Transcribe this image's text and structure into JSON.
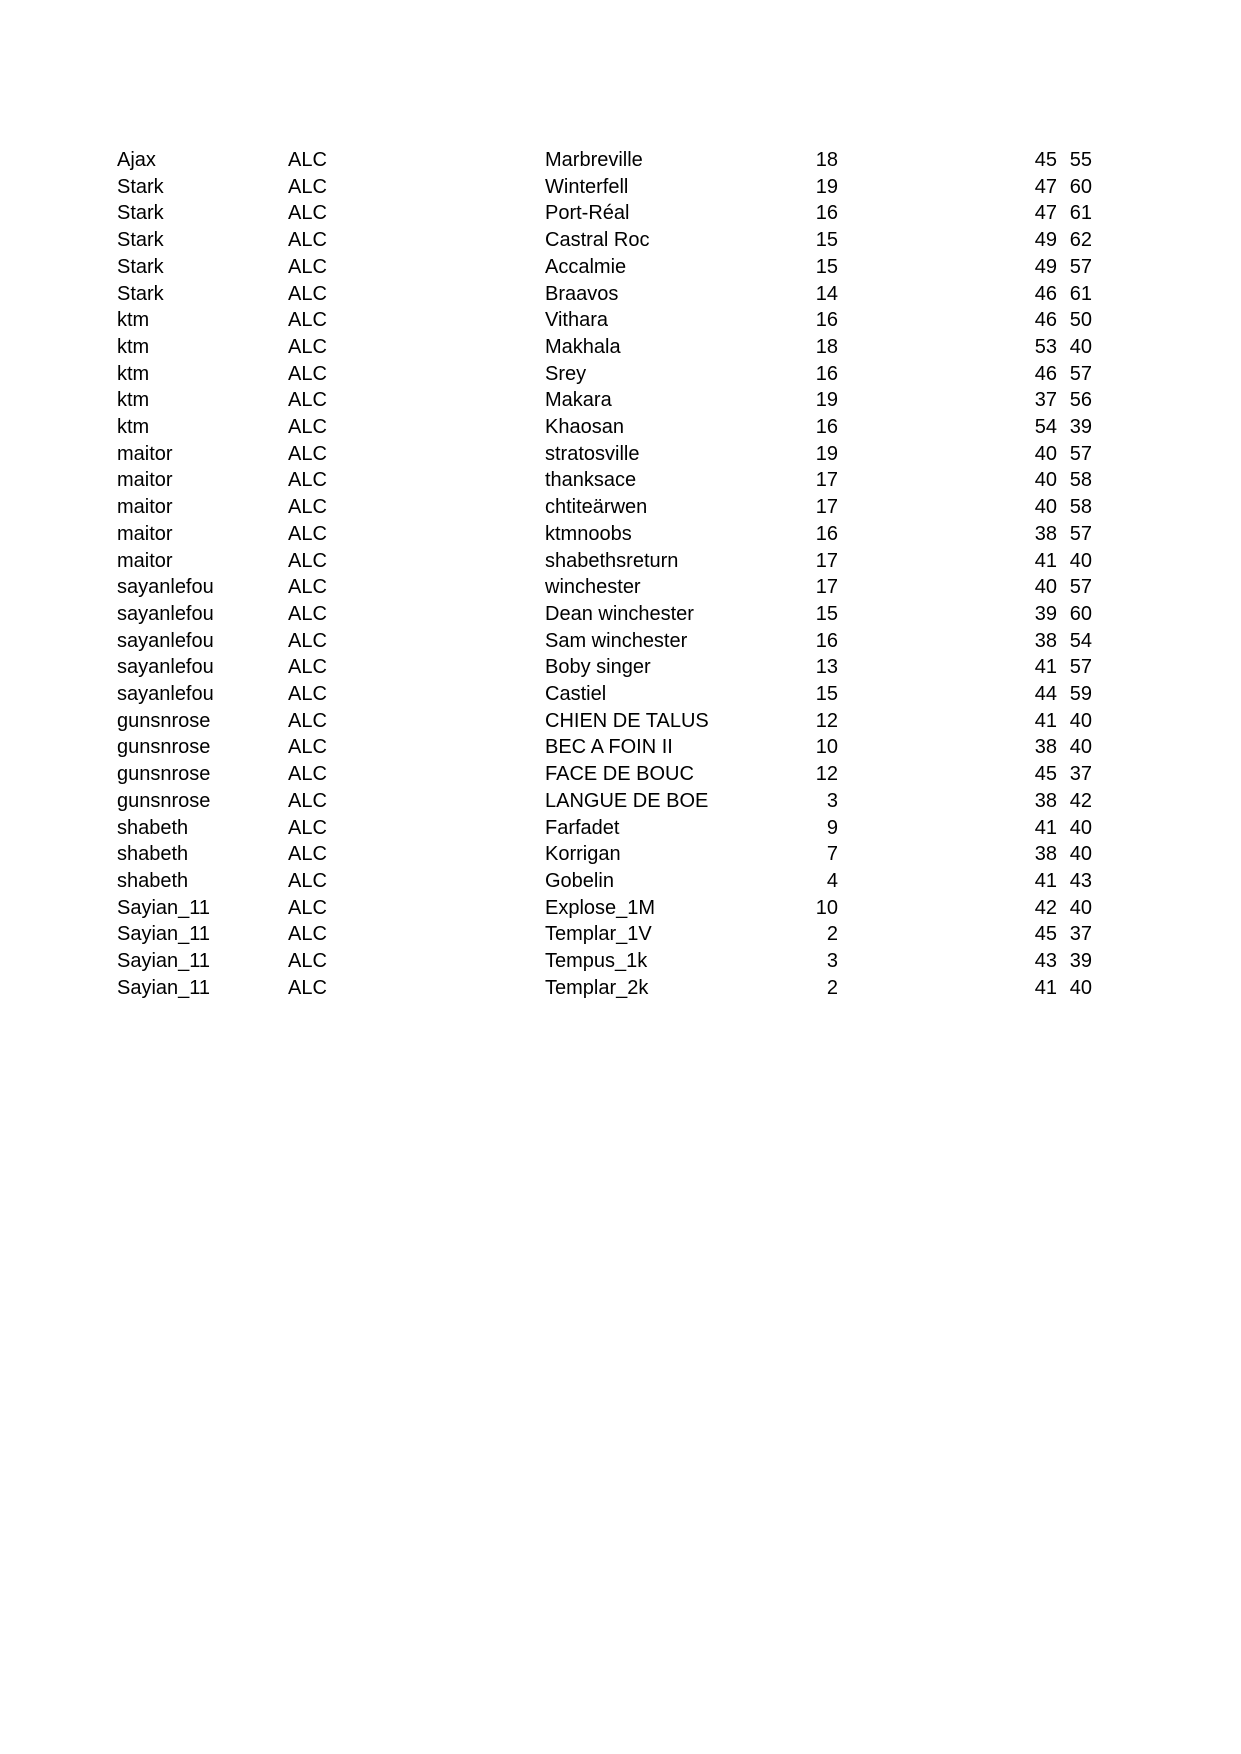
{
  "table": {
    "rows": [
      [
        "Ajax",
        "ALC",
        "Marbreville",
        18,
        45,
        55
      ],
      [
        "Stark",
        "ALC",
        "Winterfell",
        19,
        47,
        60
      ],
      [
        "Stark",
        "ALC",
        "Port-Réal",
        16,
        47,
        61
      ],
      [
        "Stark",
        "ALC",
        "Castral Roc",
        15,
        49,
        62
      ],
      [
        "Stark",
        "ALC",
        "Accalmie",
        15,
        49,
        57
      ],
      [
        "Stark",
        "ALC",
        "Braavos",
        14,
        46,
        61
      ],
      [
        "ktm",
        "ALC",
        "Vithara",
        16,
        46,
        50
      ],
      [
        "ktm",
        "ALC",
        "Makhala",
        18,
        53,
        40
      ],
      [
        "ktm",
        "ALC",
        "Srey",
        16,
        46,
        57
      ],
      [
        "ktm",
        "ALC",
        "Makara",
        19,
        37,
        56
      ],
      [
        "ktm",
        "ALC",
        "Khaosan",
        16,
        54,
        39
      ],
      [
        "maitor",
        "ALC",
        "stratosville",
        19,
        40,
        57
      ],
      [
        "maitor",
        "ALC",
        "thanksace",
        17,
        40,
        58
      ],
      [
        "maitor",
        "ALC",
        "chtiteärwen",
        17,
        40,
        58
      ],
      [
        "maitor",
        "ALC",
        "ktmnoobs",
        16,
        38,
        57
      ],
      [
        "maitor",
        "ALC",
        "shabethsreturn",
        17,
        41,
        40
      ],
      [
        "sayanlefou",
        "ALC",
        "winchester",
        17,
        40,
        57
      ],
      [
        "sayanlefou",
        "ALC",
        "Dean winchester",
        15,
        39,
        60
      ],
      [
        "sayanlefou",
        "ALC",
        "Sam winchester",
        16,
        38,
        54
      ],
      [
        "sayanlefou",
        "ALC",
        "Boby singer",
        13,
        41,
        57
      ],
      [
        "sayanlefou",
        "ALC",
        "Castiel",
        15,
        44,
        59
      ],
      [
        "gunsnrose",
        "ALC",
        "CHIEN DE TALUS",
        12,
        41,
        40
      ],
      [
        "gunsnrose",
        "ALC",
        "BEC A FOIN II",
        10,
        38,
        40
      ],
      [
        "gunsnrose",
        "ALC",
        "FACE DE BOUC",
        12,
        45,
        37
      ],
      [
        "gunsnrose",
        "ALC",
        "LANGUE DE BOE",
        3,
        38,
        42
      ],
      [
        "shabeth",
        "ALC",
        "Farfadet",
        9,
        41,
        40
      ],
      [
        "shabeth",
        "ALC",
        "Korrigan",
        7,
        38,
        40
      ],
      [
        "shabeth",
        "ALC",
        "Gobelin",
        4,
        41,
        43
      ],
      [
        "Sayian_11",
        "ALC",
        "Explose_1M",
        10,
        42,
        40
      ],
      [
        "Sayian_11",
        "ALC",
        "Templar_1V",
        2,
        45,
        37
      ],
      [
        "Sayian_11",
        "ALC",
        "Tempus_1k",
        3,
        43,
        39
      ],
      [
        "Sayian_11",
        "ALC",
        "Templar_2k",
        2,
        41,
        40
      ]
    ]
  }
}
